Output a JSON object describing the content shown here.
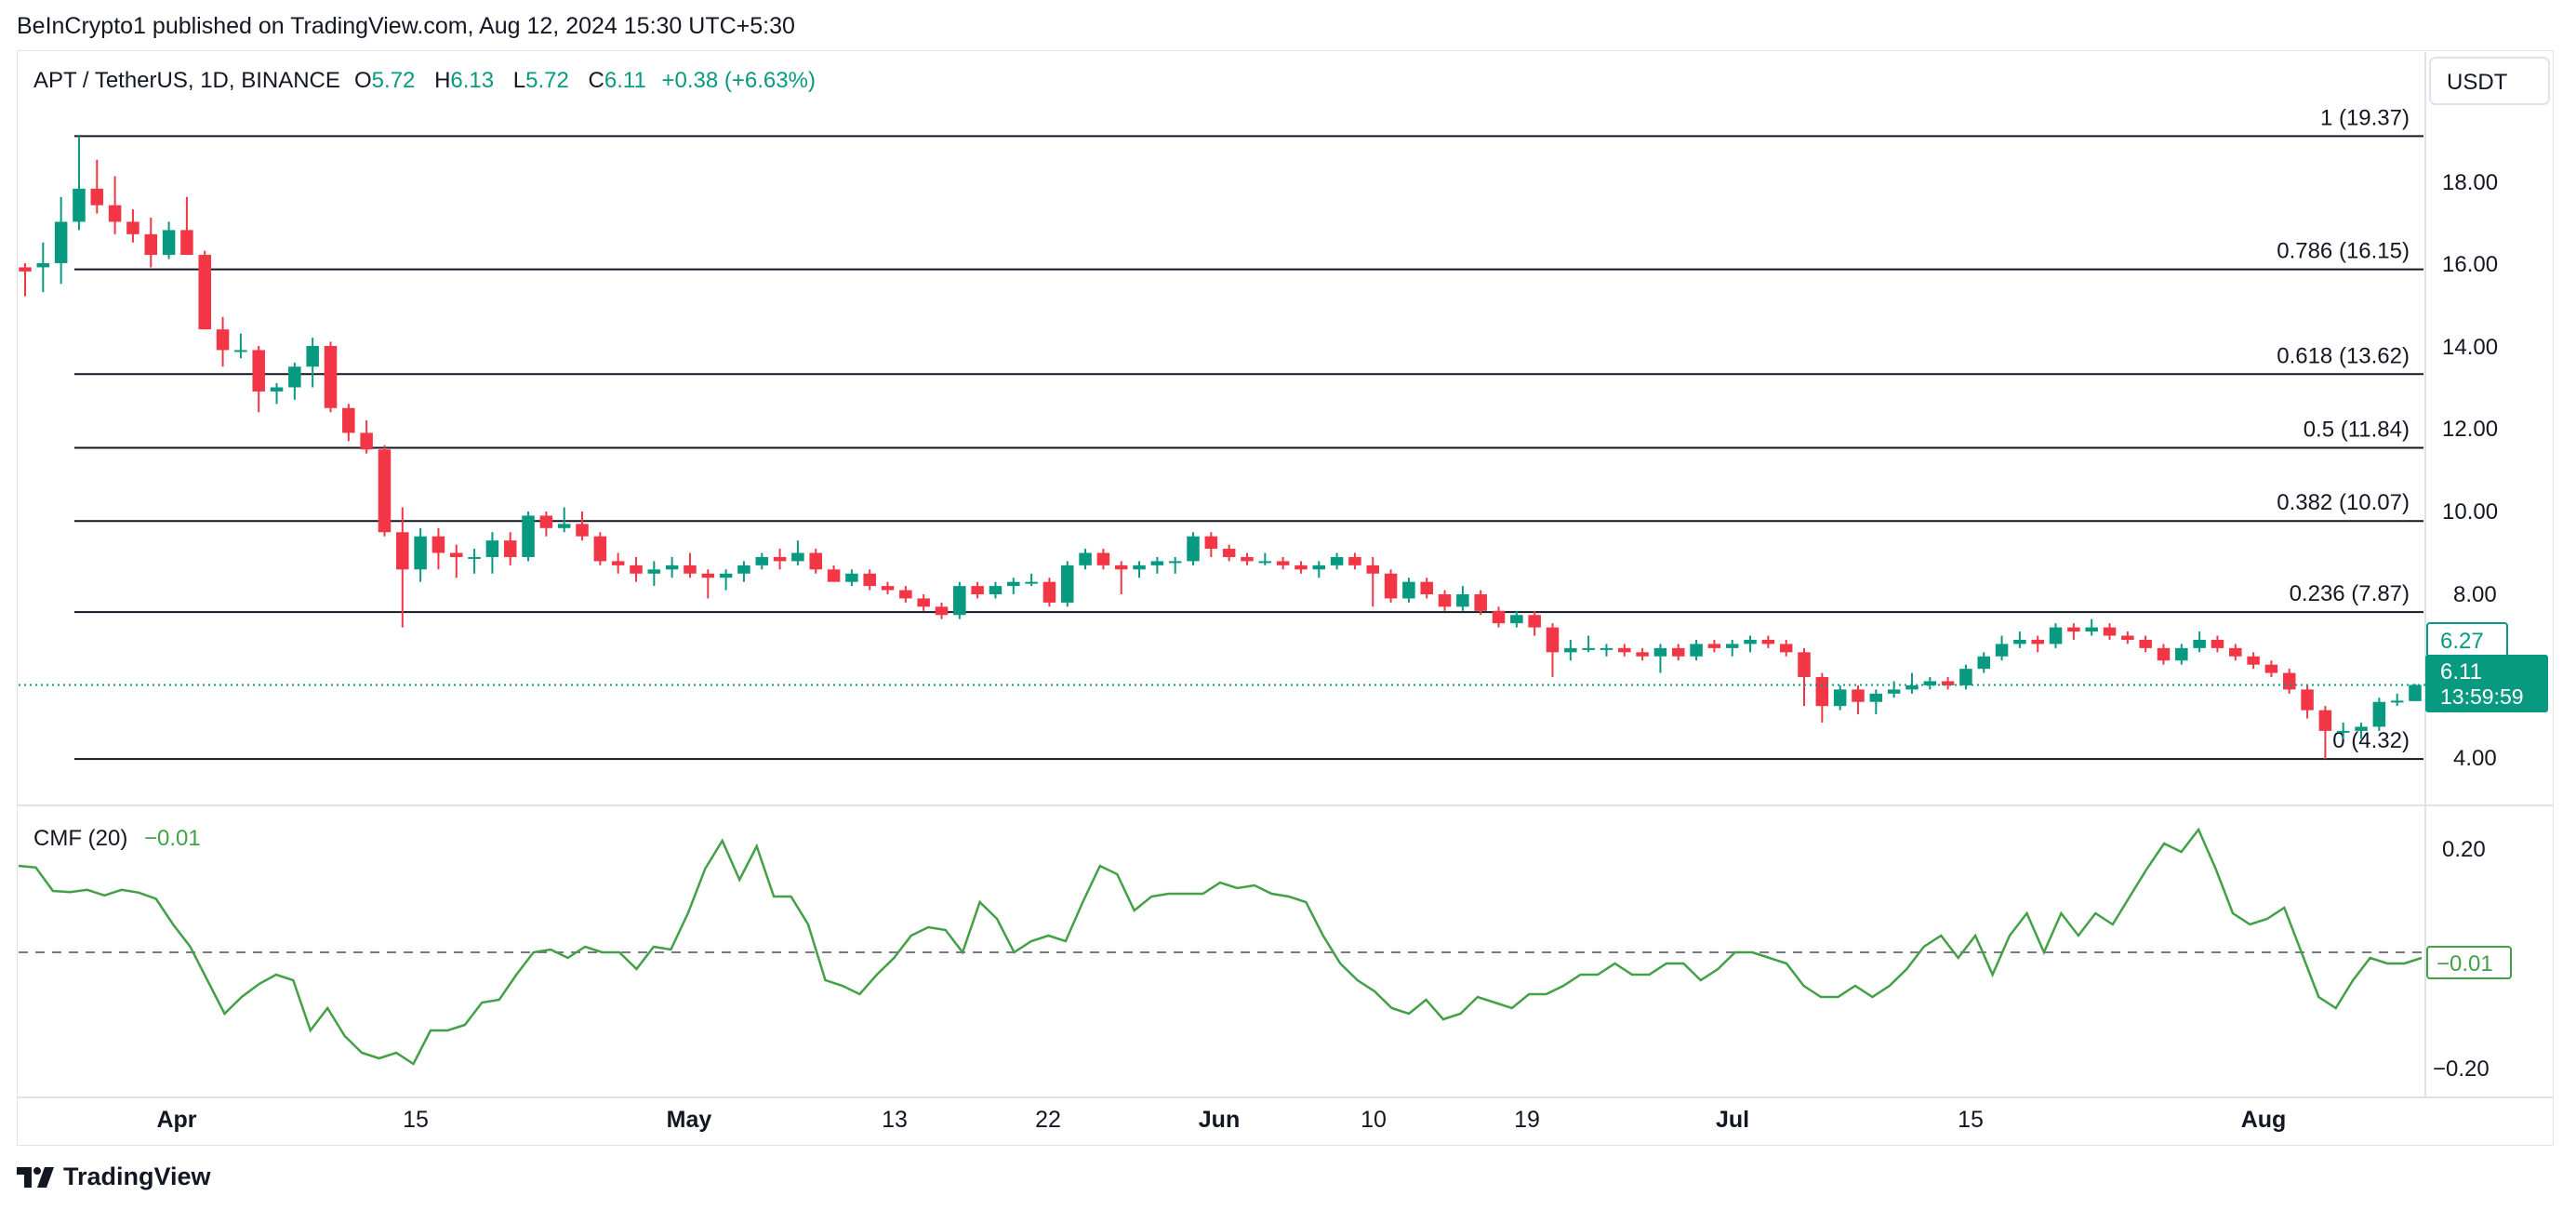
{
  "header": {
    "published": "BeInCrypto1 published on TradingView.com, Aug 12, 2024 15:30 UTC+5:30"
  },
  "footer": {
    "brand": "TradingView"
  },
  "legend": {
    "symbol": "APT / TetherUS, 1D, BINANCE",
    "o_label": "O",
    "o": "5.72",
    "h_label": "H",
    "h": "6.13",
    "l_label": "L",
    "l": "5.72",
    "c_label": "C",
    "c": "6.11",
    "change": "+0.38 (+6.63%)"
  },
  "price_axis": {
    "currency": "USDT",
    "ticks": [
      "18.00",
      "16.00",
      "14.00",
      "12.00",
      "10.00",
      "8.00",
      "4.00"
    ],
    "level_tag": "6.27",
    "last_price": "6.11",
    "countdown": "13:59:59"
  },
  "indicator": {
    "name": "CMF (20)",
    "value": "−0.01",
    "ticks": [
      "0.20",
      "−0.20"
    ],
    "value_tag": "−0.01"
  },
  "time_axis": [
    "Apr",
    "15",
    "May",
    "13",
    "22",
    "Jun",
    "10",
    "19",
    "Jul",
    "15",
    "Aug"
  ],
  "colors": {
    "up": "#089981",
    "down": "#f23645",
    "cmf": "#43a047",
    "fib": "#131722"
  },
  "chart_data": [
    {
      "type": "candlestick",
      "title": "APT / TetherUS, 1D, BINANCE",
      "ylabel": "USDT",
      "ylim": [
        3.2,
        21.4
      ],
      "fib_levels": [
        {
          "ratio": "1",
          "price": 19.37,
          "label": "1 (19.37)"
        },
        {
          "ratio": "0.786",
          "price": 16.15,
          "label": "0.786 (16.15)"
        },
        {
          "ratio": "0.618",
          "price": 13.62,
          "label": "0.618 (13.62)"
        },
        {
          "ratio": "0.5",
          "price": 11.84,
          "label": "0.5 (11.84)"
        },
        {
          "ratio": "0.382",
          "price": 10.07,
          "label": "0.382 (10.07)"
        },
        {
          "ratio": "0.236",
          "price": 7.87,
          "label": "0.236 (7.87)"
        },
        {
          "ratio": "0",
          "price": 4.32,
          "label": "0 (4.32)"
        }
      ],
      "candles_ohlc": [
        [
          16.2,
          16.3,
          15.5,
          16.1
        ],
        [
          16.2,
          16.8,
          15.6,
          16.3
        ],
        [
          16.3,
          17.9,
          15.8,
          17.3
        ],
        [
          17.3,
          19.37,
          17.1,
          18.1
        ],
        [
          18.1,
          18.8,
          17.5,
          17.7
        ],
        [
          17.7,
          18.4,
          17.0,
          17.3
        ],
        [
          17.3,
          17.6,
          16.8,
          17.0
        ],
        [
          17.0,
          17.4,
          16.2,
          16.5
        ],
        [
          16.5,
          17.3,
          16.4,
          17.1
        ],
        [
          17.1,
          17.9,
          16.5,
          16.5
        ],
        [
          16.5,
          16.6,
          14.7,
          14.7
        ],
        [
          14.7,
          15.0,
          13.8,
          14.2
        ],
        [
          14.2,
          14.6,
          14.0,
          14.2
        ],
        [
          14.2,
          14.3,
          12.7,
          13.2
        ],
        [
          13.2,
          13.4,
          12.9,
          13.3
        ],
        [
          13.3,
          13.9,
          13.0,
          13.8
        ],
        [
          13.8,
          14.5,
          13.3,
          14.3
        ],
        [
          14.3,
          14.4,
          12.7,
          12.8
        ],
        [
          12.8,
          12.9,
          12.0,
          12.2
        ],
        [
          12.2,
          12.5,
          11.7,
          11.8
        ],
        [
          11.8,
          11.9,
          9.7,
          9.8
        ],
        [
          9.8,
          10.4,
          7.5,
          8.9
        ],
        [
          8.9,
          9.9,
          8.6,
          9.7
        ],
        [
          9.7,
          9.9,
          8.9,
          9.3
        ],
        [
          9.3,
          9.5,
          8.7,
          9.2
        ],
        [
          9.2,
          9.4,
          8.8,
          9.2
        ],
        [
          9.2,
          9.8,
          8.8,
          9.6
        ],
        [
          9.6,
          9.8,
          9.0,
          9.2
        ],
        [
          9.2,
          10.3,
          9.1,
          10.2
        ],
        [
          10.2,
          10.3,
          9.7,
          9.9
        ],
        [
          9.9,
          10.4,
          9.8,
          10.0
        ],
        [
          10.0,
          10.3,
          9.6,
          9.7
        ],
        [
          9.7,
          9.8,
          9.0,
          9.1
        ],
        [
          9.1,
          9.3,
          8.8,
          9.0
        ],
        [
          9.0,
          9.2,
          8.6,
          8.8
        ],
        [
          8.8,
          9.1,
          8.5,
          8.9
        ],
        [
          8.9,
          9.2,
          8.7,
          9.0
        ],
        [
          9.0,
          9.3,
          8.7,
          8.8
        ],
        [
          8.8,
          8.9,
          8.2,
          8.7
        ],
        [
          8.7,
          8.9,
          8.4,
          8.8
        ],
        [
          8.8,
          9.1,
          8.6,
          9.0
        ],
        [
          9.0,
          9.3,
          8.9,
          9.2
        ],
        [
          9.2,
          9.4,
          8.9,
          9.1
        ],
        [
          9.1,
          9.6,
          9.0,
          9.3
        ],
        [
          9.3,
          9.4,
          8.8,
          8.9
        ],
        [
          8.9,
          9.0,
          8.6,
          8.6
        ],
        [
          8.6,
          8.9,
          8.5,
          8.8
        ],
        [
          8.8,
          8.9,
          8.4,
          8.5
        ],
        [
          8.5,
          8.6,
          8.3,
          8.4
        ],
        [
          8.4,
          8.5,
          8.1,
          8.2
        ],
        [
          8.2,
          8.3,
          7.9,
          8.0
        ],
        [
          8.0,
          8.1,
          7.7,
          7.8
        ],
        [
          7.8,
          8.6,
          7.7,
          8.5
        ],
        [
          8.5,
          8.6,
          8.2,
          8.3
        ],
        [
          8.3,
          8.6,
          8.2,
          8.5
        ],
        [
          8.5,
          8.7,
          8.3,
          8.6
        ],
        [
          8.6,
          8.8,
          8.5,
          8.6
        ],
        [
          8.6,
          8.7,
          8.0,
          8.1
        ],
        [
          8.1,
          9.1,
          8.0,
          9.0
        ],
        [
          9.0,
          9.4,
          8.9,
          9.3
        ],
        [
          9.3,
          9.4,
          8.9,
          9.0
        ],
        [
          9.0,
          9.1,
          8.3,
          8.9
        ],
        [
          8.9,
          9.1,
          8.7,
          9.0
        ],
        [
          9.0,
          9.2,
          8.8,
          9.1
        ],
        [
          9.1,
          9.2,
          8.8,
          9.1
        ],
        [
          9.1,
          9.8,
          9.0,
          9.7
        ],
        [
          9.7,
          9.8,
          9.2,
          9.4
        ],
        [
          9.4,
          9.5,
          9.1,
          9.2
        ],
        [
          9.2,
          9.3,
          9.0,
          9.1
        ],
        [
          9.1,
          9.3,
          9.0,
          9.1
        ],
        [
          9.1,
          9.2,
          8.9,
          9.0
        ],
        [
          9.0,
          9.1,
          8.8,
          8.9
        ],
        [
          8.9,
          9.1,
          8.7,
          9.0
        ],
        [
          9.0,
          9.3,
          8.9,
          9.2
        ],
        [
          9.2,
          9.3,
          8.9,
          9.0
        ],
        [
          9.0,
          9.2,
          8.0,
          8.8
        ],
        [
          8.8,
          8.9,
          8.1,
          8.2
        ],
        [
          8.2,
          8.7,
          8.1,
          8.6
        ],
        [
          8.6,
          8.7,
          8.2,
          8.3
        ],
        [
          8.3,
          8.4,
          7.9,
          8.0
        ],
        [
          8.0,
          8.5,
          7.9,
          8.3
        ],
        [
          8.3,
          8.4,
          7.8,
          7.9
        ],
        [
          7.9,
          8.0,
          7.5,
          7.6
        ],
        [
          7.6,
          7.9,
          7.5,
          7.8
        ],
        [
          7.8,
          7.9,
          7.3,
          7.5
        ],
        [
          7.5,
          7.6,
          6.3,
          6.9
        ],
        [
          6.9,
          7.2,
          6.7,
          7.0
        ],
        [
          7.0,
          7.3,
          6.9,
          7.0
        ],
        [
          7.0,
          7.1,
          6.8,
          7.0
        ],
        [
          7.0,
          7.1,
          6.8,
          6.9
        ],
        [
          6.9,
          7.0,
          6.7,
          6.8
        ],
        [
          6.8,
          7.1,
          6.4,
          7.0
        ],
        [
          7.0,
          7.1,
          6.7,
          6.8
        ],
        [
          6.8,
          7.2,
          6.7,
          7.1
        ],
        [
          7.1,
          7.2,
          6.9,
          7.0
        ],
        [
          7.0,
          7.2,
          6.8,
          7.1
        ],
        [
          7.1,
          7.3,
          6.9,
          7.2
        ],
        [
          7.2,
          7.3,
          7.0,
          7.1
        ],
        [
          7.1,
          7.2,
          6.8,
          6.9
        ],
        [
          6.9,
          7.0,
          5.6,
          6.3
        ],
        [
          6.3,
          6.4,
          5.2,
          5.6
        ],
        [
          5.6,
          6.1,
          5.5,
          6.0
        ],
        [
          6.0,
          6.1,
          5.4,
          5.7
        ],
        [
          5.7,
          6.0,
          5.4,
          5.9
        ],
        [
          5.9,
          6.2,
          5.8,
          6.0
        ],
        [
          6.0,
          6.4,
          5.9,
          6.1
        ],
        [
          6.1,
          6.3,
          6.0,
          6.2
        ],
        [
          6.2,
          6.3,
          6.0,
          6.1
        ],
        [
          6.1,
          6.6,
          6.0,
          6.5
        ],
        [
          6.5,
          6.9,
          6.4,
          6.8
        ],
        [
          6.8,
          7.3,
          6.7,
          7.1
        ],
        [
          7.1,
          7.4,
          7.0,
          7.2
        ],
        [
          7.2,
          7.3,
          6.9,
          7.1
        ],
        [
          7.1,
          7.6,
          7.0,
          7.5
        ],
        [
          7.5,
          7.6,
          7.2,
          7.4
        ],
        [
          7.4,
          7.7,
          7.3,
          7.5
        ],
        [
          7.5,
          7.6,
          7.2,
          7.3
        ],
        [
          7.3,
          7.4,
          7.1,
          7.2
        ],
        [
          7.2,
          7.3,
          6.9,
          7.0
        ],
        [
          7.0,
          7.1,
          6.6,
          6.7
        ],
        [
          6.7,
          7.1,
          6.6,
          7.0
        ],
        [
          7.0,
          7.4,
          6.9,
          7.2
        ],
        [
          7.2,
          7.3,
          6.9,
          7.0
        ],
        [
          7.0,
          7.1,
          6.7,
          6.8
        ],
        [
          6.8,
          6.9,
          6.5,
          6.6
        ],
        [
          6.6,
          6.7,
          6.3,
          6.4
        ],
        [
          6.4,
          6.5,
          5.9,
          6.0
        ],
        [
          6.0,
          6.1,
          5.3,
          5.5
        ],
        [
          5.5,
          5.6,
          4.32,
          5.0
        ],
        [
          5.0,
          5.2,
          4.8,
          5.0
        ],
        [
          5.0,
          5.2,
          4.8,
          5.1
        ],
        [
          5.1,
          5.8,
          5.0,
          5.7
        ],
        [
          5.7,
          5.9,
          5.6,
          5.73
        ],
        [
          5.72,
          6.13,
          5.72,
          6.11
        ]
      ]
    },
    {
      "type": "line",
      "title": "CMF (20)",
      "ylim": [
        -0.26,
        0.26
      ],
      "zero_line": 0,
      "values": [
        0.155,
        0.152,
        0.11,
        0.108,
        0.112,
        0.102,
        0.112,
        0.107,
        0.096,
        0.05,
        0.01,
        -0.05,
        -0.11,
        -0.08,
        -0.057,
        -0.04,
        -0.05,
        -0.14,
        -0.1,
        -0.15,
        -0.18,
        -0.19,
        -0.18,
        -0.2,
        -0.14,
        -0.14,
        -0.13,
        -0.09,
        -0.085,
        -0.04,
        0.0,
        0.005,
        -0.01,
        0.01,
        0.0,
        0.0,
        -0.03,
        0.01,
        0.005,
        0.07,
        0.15,
        0.2,
        0.13,
        0.19,
        0.1,
        0.1,
        0.05,
        -0.05,
        -0.06,
        -0.075,
        -0.04,
        -0.01,
        0.03,
        0.045,
        0.04,
        0.0,
        0.09,
        0.06,
        0.0,
        0.02,
        0.03,
        0.02,
        0.09,
        0.155,
        0.14,
        0.075,
        0.1,
        0.105,
        0.105,
        0.105,
        0.125,
        0.115,
        0.12,
        0.105,
        0.1,
        0.09,
        0.03,
        -0.02,
        -0.05,
        -0.07,
        -0.1,
        -0.11,
        -0.085,
        -0.12,
        -0.11,
        -0.08,
        -0.09,
        -0.1,
        -0.075,
        -0.075,
        -0.06,
        -0.04,
        -0.04,
        -0.02,
        -0.04,
        -0.04,
        -0.02,
        -0.02,
        -0.05,
        -0.03,
        0.0,
        0.0,
        -0.01,
        -0.02,
        -0.06,
        -0.08,
        -0.08,
        -0.06,
        -0.08,
        -0.06,
        -0.03,
        0.01,
        0.03,
        -0.01,
        0.03,
        -0.04,
        0.03,
        0.07,
        0.0,
        0.07,
        0.03,
        0.07,
        0.05,
        0.1,
        0.15,
        0.195,
        0.18,
        0.22,
        0.15,
        0.07,
        0.05,
        0.06,
        0.08,
        0.0,
        -0.08,
        -0.1,
        -0.05,
        -0.01,
        -0.02,
        -0.02,
        -0.01
      ]
    }
  ]
}
